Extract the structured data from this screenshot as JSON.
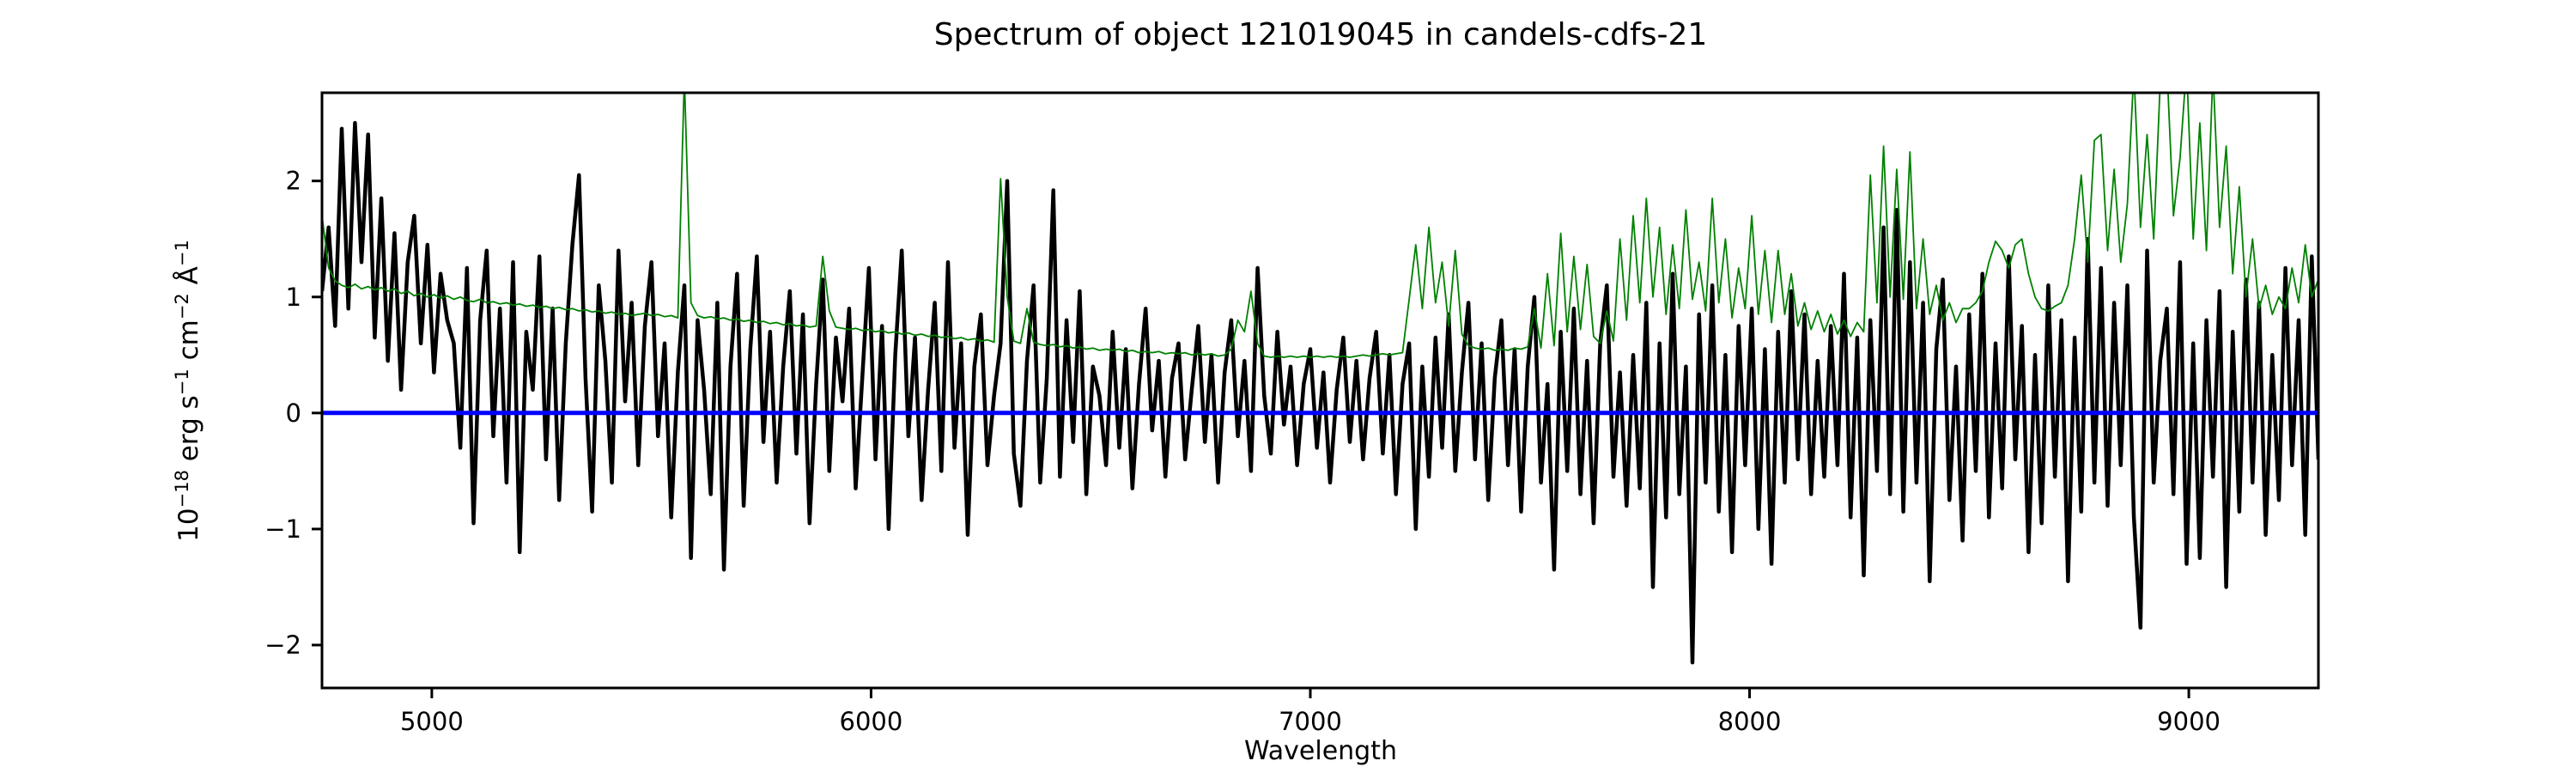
{
  "figure": {
    "background": "#ffffff"
  },
  "chart_data": {
    "type": "line",
    "title": "Spectrum of object 121019045 in candels-cdfs-21",
    "xlabel": "Wavelength",
    "ylabel": "10⁻¹⁸ erg s⁻¹ cm⁻² Å⁻¹",
    "ylabel_parts": [
      {
        "text": "10",
        "sup": false
      },
      {
        "text": "−18",
        "sup": true
      },
      {
        "text": " erg s",
        "sup": false
      },
      {
        "text": "−1",
        "sup": true
      },
      {
        "text": " cm",
        "sup": false
      },
      {
        "text": "−2",
        "sup": true
      },
      {
        "text": " Å",
        "sup": false
      },
      {
        "text": "−1",
        "sup": true
      }
    ],
    "xlim": [
      4750,
      9295
    ],
    "ylim": [
      -2.37,
      2.76
    ],
    "xticks": [
      5000,
      6000,
      7000,
      8000,
      9000
    ],
    "xtick_labels": [
      "5000",
      "6000",
      "7000",
      "8000",
      "9000"
    ],
    "yticks": [
      2,
      1,
      0,
      -1,
      -2
    ],
    "ytick_labels": [
      "2",
      "1",
      "0",
      "−1",
      "−2"
    ],
    "grid": false,
    "legend": false,
    "axis_color": "#000000",
    "series": [
      {
        "name": "observed-spectrum",
        "color": "#000000",
        "linewidth": 4.5,
        "x_start": 4750,
        "x_step": 15,
        "y_scale": 0.01,
        "y": [
          105,
          160,
          75,
          245,
          90,
          250,
          130,
          240,
          65,
          185,
          45,
          155,
          20,
          130,
          170,
          60,
          145,
          35,
          120,
          80,
          60,
          -30,
          125,
          -95,
          80,
          140,
          -20,
          90,
          -60,
          130,
          -120,
          70,
          20,
          135,
          -40,
          90,
          -75,
          60,
          145,
          205,
          30,
          -85,
          110,
          45,
          -60,
          140,
          10,
          95,
          -45,
          75,
          130,
          -20,
          60,
          -90,
          35,
          110,
          -125,
          80,
          20,
          -70,
          95,
          -135,
          40,
          120,
          -80,
          55,
          135,
          -25,
          70,
          -60,
          40,
          105,
          -35,
          85,
          -95,
          25,
          115,
          -50,
          65,
          10,
          90,
          -65,
          30,
          125,
          -40,
          75,
          -100,
          50,
          140,
          -20,
          65,
          -75,
          20,
          95,
          -50,
          130,
          -30,
          60,
          -105,
          40,
          85,
          -45,
          15,
          60,
          200,
          -35,
          -80,
          45,
          110,
          -60,
          30,
          192,
          -55,
          80,
          -25,
          105,
          -70,
          40,
          15,
          -45,
          70,
          -30,
          55,
          -65,
          25,
          90,
          -15,
          45,
          -55,
          30,
          60,
          -40,
          20,
          75,
          -25,
          50,
          -60,
          35,
          80,
          -20,
          45,
          -50,
          125,
          15,
          -35,
          70,
          -10,
          40,
          -45,
          25,
          55,
          -30,
          35,
          -60,
          20,
          65,
          -25,
          45,
          -40,
          30,
          70,
          -35,
          50,
          -70,
          25,
          60,
          -100,
          40,
          -55,
          65,
          -30,
          85,
          -50,
          35,
          95,
          -40,
          60,
          -75,
          30,
          80,
          -45,
          55,
          -85,
          40,
          100,
          -60,
          25,
          -135,
          70,
          -50,
          90,
          -70,
          45,
          -95,
          60,
          110,
          -55,
          35,
          -80,
          50,
          -65,
          95,
          -150,
          60,
          -90,
          120,
          -70,
          40,
          -215,
          85,
          -60,
          110,
          -85,
          50,
          -120,
          75,
          -45,
          90,
          -100,
          55,
          -130,
          70,
          -60,
          105,
          -40,
          85,
          -70,
          45,
          -55,
          75,
          -45,
          120,
          -90,
          65,
          -140,
          80,
          -50,
          160,
          -70,
          175,
          -85,
          130,
          -60,
          95,
          -145,
          55,
          115,
          -75,
          40,
          -110,
          85,
          -50,
          120,
          -90,
          60,
          -65,
          135,
          -40,
          75,
          -120,
          50,
          -95,
          110,
          -55,
          80,
          -145,
          65,
          -85,
          150,
          -60,
          125,
          -80,
          95,
          -45,
          110,
          -90,
          -185,
          140,
          -60,
          45,
          90,
          -70,
          130,
          -130,
          60,
          -125,
          80,
          -55,
          105,
          -150,
          70,
          -85,
          115,
          -60,
          95,
          -105,
          50,
          -75,
          125,
          -45,
          80,
          -105,
          135,
          -40
        ]
      },
      {
        "name": "noise-spectrum",
        "color": "#008000",
        "linewidth": 1.8,
        "x_start": 4750,
        "x_step": 15,
        "y_scale": 0.01,
        "y": [
          170,
          125,
          114,
          110,
          108,
          111,
          107,
          109,
          106,
          108,
          105,
          107,
          103,
          105,
          101,
          103,
          100,
          102,
          99,
          101,
          98,
          100,
          97,
          96,
          98,
          95,
          96,
          94,
          95,
          93,
          94,
          92,
          93,
          91,
          92,
          90,
          91,
          89,
          90,
          88,
          89,
          87,
          88,
          86,
          87,
          85,
          86,
          84,
          85,
          86,
          84,
          85,
          83,
          84,
          82,
          290,
          95,
          84,
          82,
          83,
          81,
          82,
          80,
          81,
          79,
          80,
          78,
          79,
          77,
          78,
          76,
          77,
          75,
          76,
          74,
          75,
          135,
          88,
          74,
          73,
          72,
          73,
          71,
          72,
          70,
          71,
          69,
          70,
          68,
          69,
          67,
          68,
          66,
          67,
          65,
          66,
          64,
          65,
          63,
          64,
          62,
          63,
          61,
          202,
          100,
          62,
          60,
          90,
          61,
          59,
          58,
          59,
          57,
          58,
          56,
          57,
          55,
          56,
          54,
          55,
          54,
          55,
          53,
          54,
          52,
          53,
          52,
          53,
          51,
          52,
          51,
          52,
          50,
          51,
          50,
          51,
          49,
          50,
          55,
          80,
          70,
          105,
          60,
          49,
          48,
          49,
          48,
          49,
          48,
          49,
          48,
          49,
          48,
          49,
          48,
          49,
          48,
          49,
          50,
          49,
          50,
          51,
          50,
          51,
          52,
          98,
          145,
          90,
          160,
          95,
          130,
          75,
          140,
          68,
          58,
          56,
          55,
          56,
          54,
          55,
          54,
          56,
          55,
          57,
          90,
          56,
          120,
          58,
          155,
          70,
          135,
          72,
          128,
          66,
          60,
          88,
          62,
          150,
          80,
          170,
          95,
          185,
          100,
          160,
          85,
          145,
          90,
          175,
          98,
          130,
          88,
          185,
          95,
          150,
          82,
          125,
          90,
          170,
          85,
          140,
          78,
          140,
          85,
          120,
          75,
          95,
          72,
          88,
          70,
          85,
          68,
          80,
          66,
          78,
          70,
          205,
          95,
          230,
          100,
          210,
          98,
          225,
          90,
          150,
          85,
          110,
          80,
          95,
          78,
          90,
          90,
          95,
          105,
          130,
          148,
          140,
          125,
          145,
          150,
          120,
          100,
          90,
          88,
          92,
          95,
          110,
          150,
          205,
          130,
          235,
          240,
          140,
          210,
          130,
          180,
          295,
          160,
          240,
          150,
          285,
          300,
          170,
          220,
          300,
          150,
          250,
          140,
          295,
          160,
          230,
          120,
          195,
          100,
          150,
          90,
          110,
          85,
          100,
          90,
          125,
          95,
          145,
          100,
          115
        ]
      },
      {
        "name": "zero-flux-line",
        "color": "#0000ff",
        "linewidth": 5,
        "x_start": 4750,
        "x_step": 4545,
        "y_scale": 1,
        "y": [
          0,
          0
        ]
      }
    ]
  }
}
